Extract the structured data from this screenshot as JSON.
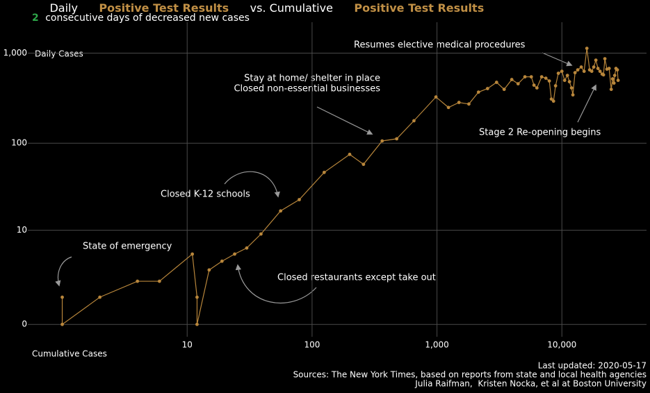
{
  "chart_data": {
    "type": "line",
    "title_parts": [
      "Daily",
      "Positive Test Results",
      "vs. Cumulative",
      "Positive Test Results"
    ],
    "consecutive_days": 2,
    "subtitle": "consecutive days of decreased new cases",
    "y_label": "Daily Cases",
    "x_label": "Cumulative Cases",
    "x_scale": "log",
    "y_scale": "pseudo-log",
    "color": "#b8863b",
    "highlight_color": "#c08f45",
    "subtitle_highlight_color": "#2ea84a",
    "grid": true,
    "x": [
      1,
      1,
      2,
      4,
      6,
      11,
      12,
      12,
      15,
      19,
      24,
      30,
      39,
      56,
      79,
      125,
      200,
      258,
      364,
      476,
      654,
      981,
      1236,
      1500,
      1800,
      2150,
      2540,
      3000,
      3450,
      3970,
      4460,
      5060,
      5690,
      5980,
      6310,
      6890,
      7440,
      7930,
      8240,
      8570,
      8900,
      9370,
      10000,
      10520,
      11070,
      11500,
      11950,
      12250,
      12740,
      13400,
      14290,
      15060,
      15850,
      16680,
      17340,
      18000,
      18710,
      19450,
      20200,
      21000,
      21530,
      22090,
      22950,
      23880,
      24830,
      25470,
      26120,
      26480,
      27100,
      27800,
      28180
    ],
    "values": [
      1,
      0,
      1,
      2,
      2,
      5,
      1,
      0,
      3,
      4,
      5,
      6,
      9,
      17,
      23,
      47,
      75,
      58,
      106,
      112,
      178,
      327,
      250,
      284,
      273,
      370,
      405,
      475,
      397,
      510,
      458,
      547,
      547,
      442,
      412,
      547,
      528,
      492,
      310,
      294,
      435,
      598,
      630,
      500,
      567,
      483,
      412,
      345,
      608,
      653,
      702,
      630,
      1131,
      653,
      630,
      702,
      837,
      677,
      630,
      587,
      575,
      867,
      665,
      677,
      397,
      519,
      466,
      567,
      677,
      653,
      500
    ],
    "xlim": [
      0.53,
      47600
    ],
    "ylim": [
      -0.27,
      2200
    ],
    "xticks": [
      10,
      100,
      {
        "value": 1000,
        "label": "1,000"
      },
      {
        "value": 10000,
        "label": "10,000"
      }
    ],
    "yticks": [
      0,
      10,
      100,
      {
        "value": 1000,
        "label": "1,000"
      }
    ],
    "annotations": [
      "Resumes elective medical procedures",
      "Stay at home/ shelter in place",
      "Closed non-essential businesses",
      "Stage 2 Re-opening begins",
      "Closed K-12 schools",
      "State of emergency",
      "Closed restaurants except take out"
    ],
    "footer": [
      "Last updated: 2020-05-17",
      "Sources: The New York Times, based on reports from state and local health agencies",
      "Julia Raifman,  Kristen Nocka, et al at Boston University"
    ]
  }
}
